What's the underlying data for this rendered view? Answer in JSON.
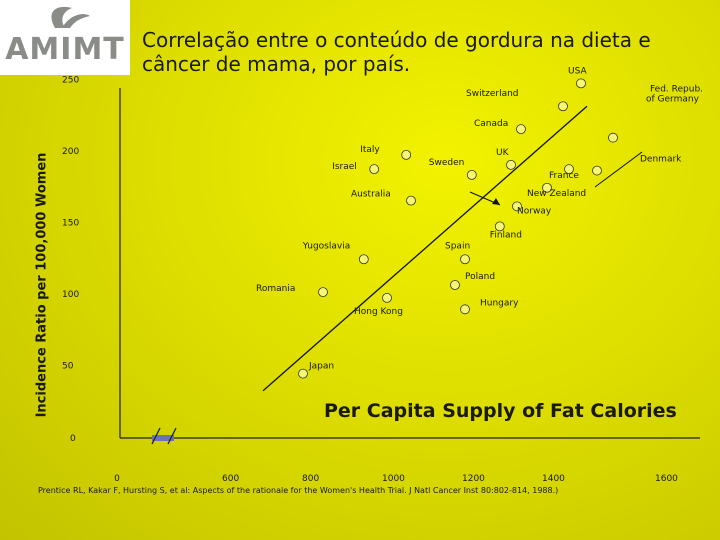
{
  "logo": {
    "text": "AMIMT"
  },
  "title": "Correlação entre o conteúdo de gordura na dieta e câncer de mama, por país.",
  "source": "Prentice RL, Kakar F, Hursting S, et al: Aspects of the rationale for the Women's Health Trial. J Natl Cancer Inst 80:802-814, 1988.)",
  "chart_data": {
    "type": "scatter",
    "xlabel": "Per Capita Supply of Fat Calories",
    "ylabel": "Incidence Ratio per 100,000 Women",
    "x_ticks": [
      0,
      600,
      800,
      1000,
      1200,
      1400,
      1600
    ],
    "y_ticks": [
      0,
      50,
      100,
      150,
      200,
      250
    ],
    "x_axis_break": true,
    "grid": false,
    "points": [
      {
        "label": "USA",
        "x": 1485,
        "y": 248
      },
      {
        "label": "Switzerland",
        "x": 1440,
        "y": 232
      },
      {
        "label": "Canada",
        "x": 1335,
        "y": 216
      },
      {
        "label": "Fed. Repub. of Germany",
        "x": 1565,
        "y": 210
      },
      {
        "label": "Italy",
        "x": 1048,
        "y": 198
      },
      {
        "label": "Israel",
        "x": 968,
        "y": 188
      },
      {
        "label": "UK",
        "x": 1310,
        "y": 191
      },
      {
        "label": "Sweden",
        "x": 1212,
        "y": 184
      },
      {
        "label": "France",
        "x": 1455,
        "y": 188
      },
      {
        "label": "Denmark",
        "x": 1525,
        "y": 187
      },
      {
        "label": "New Zealand",
        "x": 1400,
        "y": 175
      },
      {
        "label": "Australia",
        "x": 1060,
        "y": 166
      },
      {
        "label": "Norway",
        "x": 1325,
        "y": 162
      },
      {
        "label": "Finland",
        "x": 1282,
        "y": 148
      },
      {
        "label": "Yugoslavia",
        "x": 942,
        "y": 125
      },
      {
        "label": "Spain",
        "x": 1195,
        "y": 125
      },
      {
        "label": "Poland",
        "x": 1170,
        "y": 107
      },
      {
        "label": "Romania",
        "x": 840,
        "y": 102
      },
      {
        "label": "Hong Kong",
        "x": 1000,
        "y": 98
      },
      {
        "label": "Hungary",
        "x": 1195,
        "y": 90
      },
      {
        "label": "Japan",
        "x": 790,
        "y": 45
      }
    ],
    "trendline": [
      {
        "x": 690,
        "y": 33
      },
      {
        "x": 1500,
        "y": 232
      }
    ]
  }
}
